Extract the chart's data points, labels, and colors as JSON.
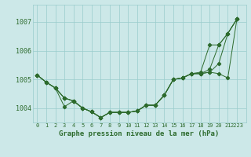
{
  "title": "Graphe pression niveau de la mer (hPa)",
  "background_color": "#cce8e8",
  "grid_color": "#99cccc",
  "line_color": "#2d6b2d",
  "xlim": [
    -0.5,
    23
  ],
  "ylim": [
    1003.5,
    1007.6
  ],
  "yticks": [
    1004,
    1005,
    1006,
    1007
  ],
  "xtick_labels": [
    "0",
    "1",
    "2",
    "3",
    "4",
    "5",
    "6",
    "7",
    "8",
    "9",
    "10",
    "11",
    "12",
    "13",
    "14",
    "15",
    "16",
    "17",
    "18",
    "19",
    "20",
    "21",
    "2223"
  ],
  "xticks": [
    0,
    1,
    2,
    3,
    4,
    5,
    6,
    7,
    8,
    9,
    10,
    11,
    12,
    13,
    14,
    15,
    16,
    17,
    18,
    19,
    20,
    21,
    22
  ],
  "series": [
    [
      1005.15,
      1004.9,
      1004.7,
      1004.35,
      1004.25,
      1004.0,
      1003.87,
      1003.67,
      1003.85,
      1003.85,
      1003.85,
      1003.9,
      1004.1,
      1004.1,
      1004.45,
      1005.0,
      1005.05,
      1005.2,
      1005.2,
      1005.25,
      1005.2,
      1005.05,
      1007.1
    ],
    [
      1005.15,
      1004.9,
      1004.7,
      1004.35,
      1004.25,
      1004.0,
      1003.87,
      1003.67,
      1003.85,
      1003.85,
      1003.85,
      1003.9,
      1004.1,
      1004.1,
      1004.45,
      1005.0,
      1005.05,
      1005.2,
      1005.2,
      1005.25,
      1005.55,
      1006.6,
      1007.1
    ],
    [
      1005.15,
      1004.9,
      1004.7,
      1004.35,
      1004.25,
      1004.0,
      1003.87,
      1003.67,
      1003.85,
      1003.85,
      1003.85,
      1003.9,
      1004.1,
      1004.1,
      1004.45,
      1005.0,
      1005.05,
      1005.2,
      1005.2,
      1005.35,
      1006.2,
      1006.6,
      1007.1
    ],
    [
      1005.15,
      1004.9,
      1004.7,
      1004.05,
      1004.25,
      1004.0,
      1003.87,
      1003.67,
      1003.85,
      1003.85,
      1003.85,
      1003.9,
      1004.1,
      1004.1,
      1004.45,
      1005.0,
      1005.05,
      1005.2,
      1005.25,
      1006.2,
      1006.2,
      1006.6,
      1007.1
    ]
  ]
}
